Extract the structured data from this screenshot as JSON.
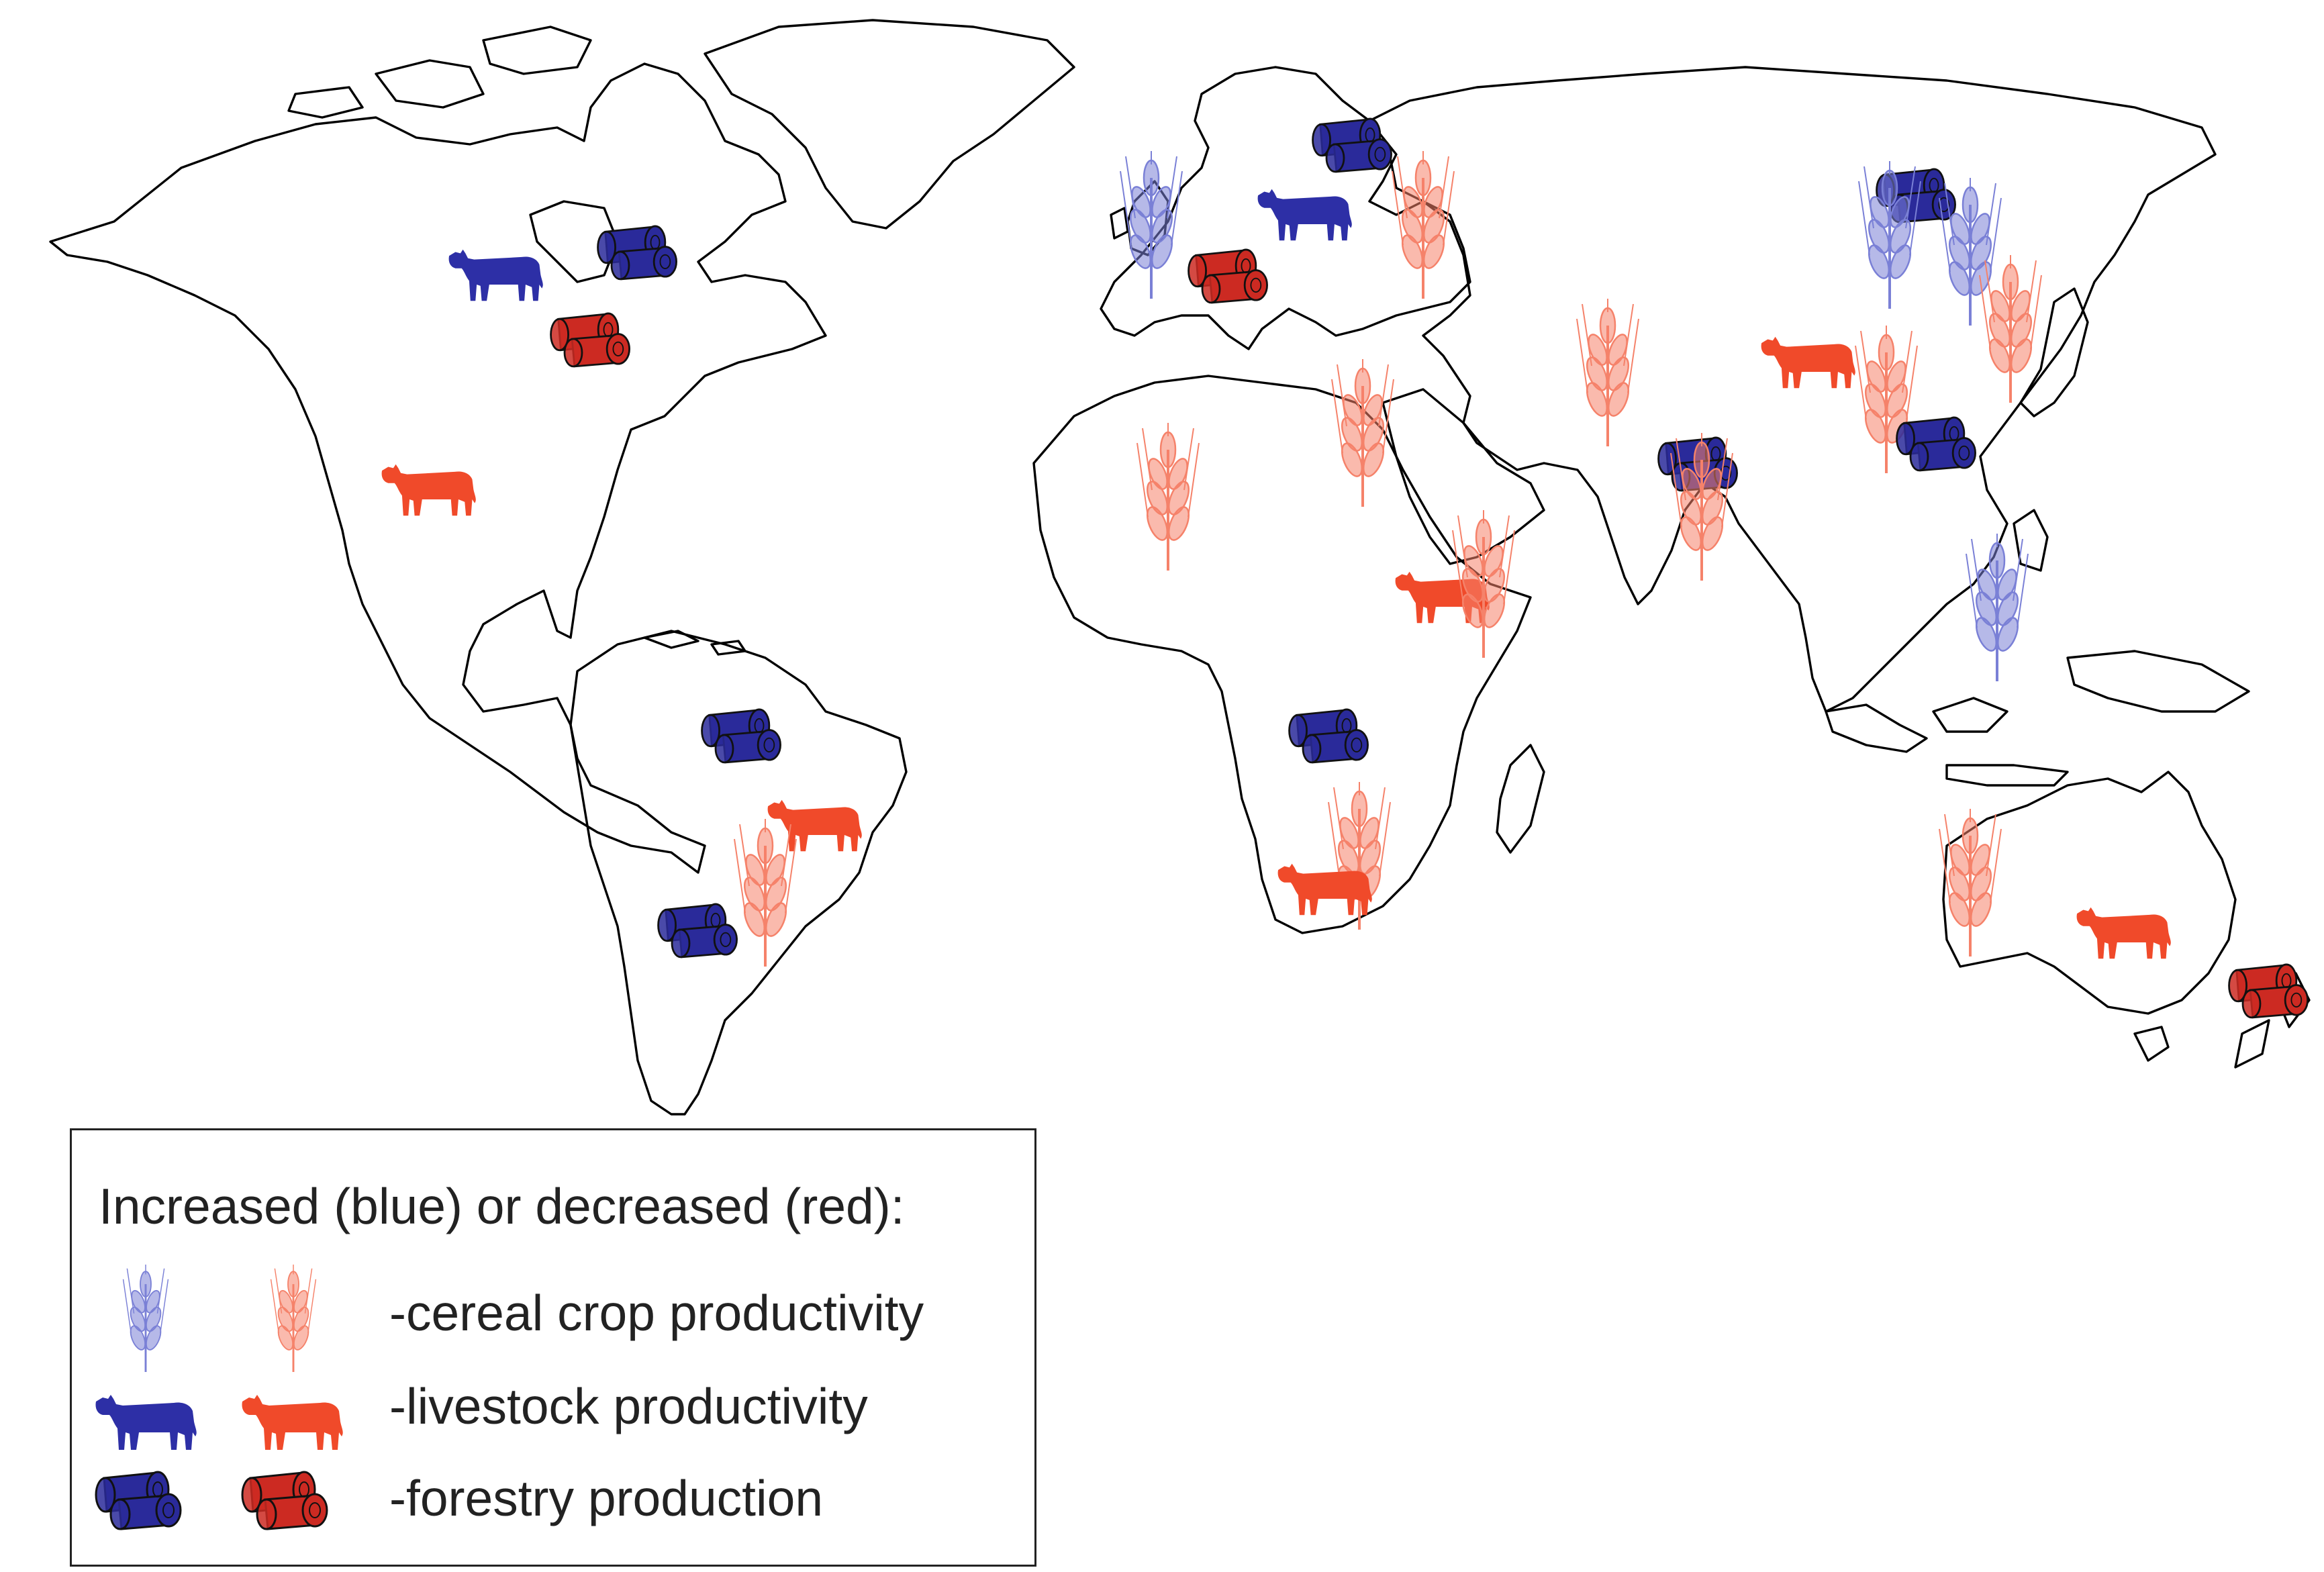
{
  "legend": {
    "title": "Increased (blue) or decreased (red):",
    "rows": [
      {
        "symbol": "wheat-icon",
        "label": "-cereal crop productivity"
      },
      {
        "symbol": "cow-icon",
        "label": "-livestock productivity"
      },
      {
        "symbol": "logs-icon",
        "label": "-forestry production"
      }
    ]
  },
  "colors": {
    "increased": "#2d2fa6",
    "decreased": "#f04a2a",
    "increased_light": "#7a80d6",
    "decreased_light": "#f5826a",
    "increased_logs": "#2a2a9a",
    "decreased_logs": "#cc2a22",
    "coastline": "#000000"
  },
  "markers": [
    {
      "region": "Western Canada",
      "type": "livestock",
      "change": "increased"
    },
    {
      "region": "Eastern Canada",
      "type": "forestry",
      "change": "increased"
    },
    {
      "region": "Eastern United States",
      "type": "forestry",
      "change": "decreased"
    },
    {
      "region": "Mexico",
      "type": "livestock",
      "change": "decreased"
    },
    {
      "region": "Amazon",
      "type": "forestry",
      "change": "increased"
    },
    {
      "region": "Eastern Brazil",
      "type": "livestock",
      "change": "decreased"
    },
    {
      "region": "Southern Brazil",
      "type": "cereal",
      "change": "decreased"
    },
    {
      "region": "Argentina",
      "type": "forestry",
      "change": "increased"
    },
    {
      "region": "British Isles",
      "type": "cereal",
      "change": "increased"
    },
    {
      "region": "Scandinavia",
      "type": "forestry",
      "change": "increased"
    },
    {
      "region": "Northern Europe",
      "type": "livestock",
      "change": "increased"
    },
    {
      "region": "Western Russia",
      "type": "cereal",
      "change": "decreased"
    },
    {
      "region": "Central Europe",
      "type": "forestry",
      "change": "decreased"
    },
    {
      "region": "Central Asia",
      "type": "cereal",
      "change": "decreased"
    },
    {
      "region": "Central Asia",
      "type": "livestock",
      "change": "decreased"
    },
    {
      "region": "China",
      "type": "cereal",
      "change": "decreased"
    },
    {
      "region": "Siberia",
      "type": "forestry",
      "change": "increased"
    },
    {
      "region": "Siberia",
      "type": "cereal",
      "change": "increased"
    },
    {
      "region": "Northeast China",
      "type": "cereal",
      "change": "increased"
    },
    {
      "region": "Korea",
      "type": "cereal",
      "change": "decreased"
    },
    {
      "region": "Southern China",
      "type": "forestry",
      "change": "increased"
    },
    {
      "region": "India",
      "type": "forestry",
      "change": "increased"
    },
    {
      "region": "India",
      "type": "cereal",
      "change": "decreased"
    },
    {
      "region": "Southeast Asia",
      "type": "cereal",
      "change": "increased"
    },
    {
      "region": "Egypt",
      "type": "cereal",
      "change": "decreased"
    },
    {
      "region": "West Africa",
      "type": "cereal",
      "change": "decreased"
    },
    {
      "region": "East Africa",
      "type": "livestock",
      "change": "decreased"
    },
    {
      "region": "East Africa",
      "type": "cereal",
      "change": "decreased"
    },
    {
      "region": "Central Africa",
      "type": "forestry",
      "change": "increased"
    },
    {
      "region": "Southern Africa",
      "type": "cereal",
      "change": "decreased"
    },
    {
      "region": "Southern Africa",
      "type": "livestock",
      "change": "decreased"
    },
    {
      "region": "Western Australia",
      "type": "cereal",
      "change": "decreased"
    },
    {
      "region": "Southeast Australia",
      "type": "livestock",
      "change": "decreased"
    },
    {
      "region": "New Zealand",
      "type": "forestry",
      "change": "decreased"
    }
  ]
}
